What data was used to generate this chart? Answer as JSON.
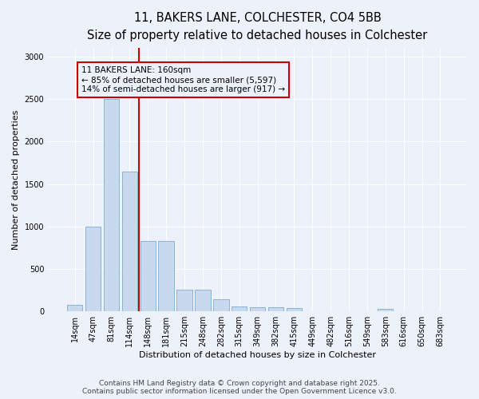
{
  "title_line1": "11, BAKERS LANE, COLCHESTER, CO4 5BB",
  "title_line2": "Size of property relative to detached houses in Colchester",
  "xlabel": "Distribution of detached houses by size in Colchester",
  "ylabel": "Number of detached properties",
  "categories": [
    "14sqm",
    "47sqm",
    "81sqm",
    "114sqm",
    "148sqm",
    "181sqm",
    "215sqm",
    "248sqm",
    "282sqm",
    "315sqm",
    "349sqm",
    "382sqm",
    "415sqm",
    "449sqm",
    "482sqm",
    "516sqm",
    "549sqm",
    "583sqm",
    "616sqm",
    "650sqm",
    "683sqm"
  ],
  "values": [
    75,
    1000,
    2500,
    1650,
    830,
    830,
    260,
    260,
    140,
    60,
    50,
    50,
    40,
    0,
    0,
    0,
    0,
    30,
    0,
    0,
    0
  ],
  "bar_color": "#c8d9ee",
  "bar_edge_color": "#7aadd4",
  "background_color": "#edf1fa",
  "grid_color": "#ffffff",
  "annotation_box_color": "#cc0000",
  "annotation_line1": "11 BAKERS LANE: 160sqm",
  "annotation_line2": "← 85% of detached houses are smaller (5,597)",
  "annotation_line3": "14% of semi-detached houses are larger (917) →",
  "marker_bin_index": 4,
  "ylim": [
    0,
    3100
  ],
  "yticks": [
    0,
    500,
    1000,
    1500,
    2000,
    2500,
    3000
  ],
  "footer_line1": "Contains HM Land Registry data © Crown copyright and database right 2025.",
  "footer_line2": "Contains public sector information licensed under the Open Government Licence v3.0.",
  "title_fontsize": 10.5,
  "subtitle_fontsize": 9,
  "axis_label_fontsize": 8,
  "tick_fontsize": 7,
  "annotation_fontsize": 7.5,
  "footer_fontsize": 6.5
}
